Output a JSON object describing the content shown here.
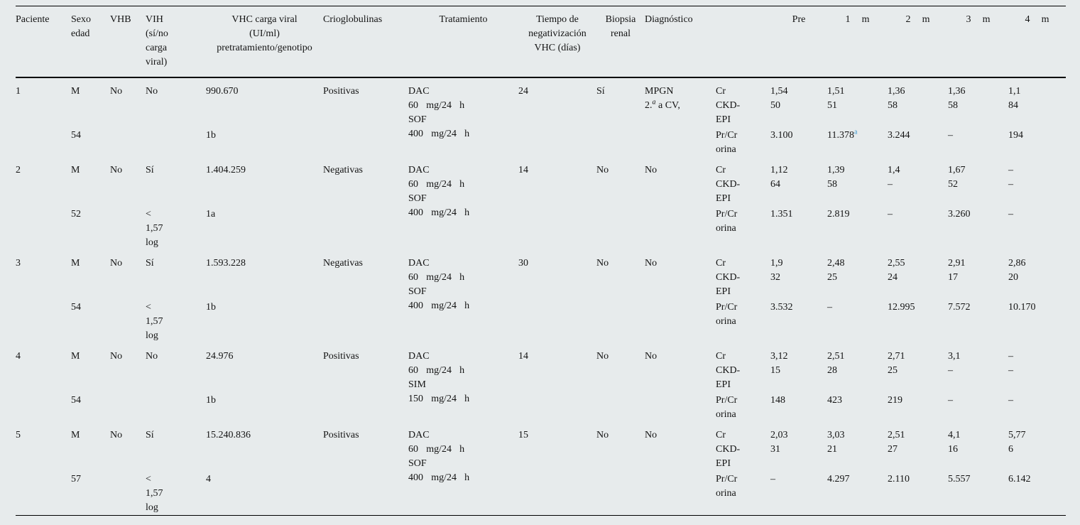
{
  "page": {
    "background_color": "#e7ebec",
    "text_color": "#131313",
    "footnote_link_color": "#3d9ad0"
  },
  "header": {
    "columns": [
      {
        "key": "paciente",
        "lines": [
          "Paciente"
        ],
        "align": "left"
      },
      {
        "key": "sexo",
        "lines": [
          "Sexo",
          "edad"
        ],
        "align": "left"
      },
      {
        "key": "vhb",
        "lines": [
          "VHB"
        ],
        "align": "left"
      },
      {
        "key": "vih",
        "lines": [
          "VIH",
          "(sí/no",
          "carga",
          "viral)"
        ],
        "align": "left"
      },
      {
        "key": "vhc",
        "lines": [
          "VHC carga viral",
          "(UI/ml)",
          "pretratamiento/genotipo"
        ],
        "align": "center"
      },
      {
        "key": "crioglobulinas",
        "lines": [
          "Crioglobulinas"
        ],
        "align": "left"
      },
      {
        "key": "tratamiento",
        "lines": [
          "Tratamiento"
        ],
        "align": "center"
      },
      {
        "key": "tiempo",
        "lines": [
          "Tiempo de",
          "negativización",
          "VHC (días)"
        ],
        "align": "center"
      },
      {
        "key": "biopsia",
        "lines": [
          "Biopsia",
          "renal"
        ],
        "align": "center"
      },
      {
        "key": "diagnostico",
        "lines": [
          "Diagnóstico"
        ],
        "align": "left"
      },
      {
        "key": "param",
        "lines": [],
        "align": "left"
      },
      {
        "key": "pre",
        "lines": [
          "Pre"
        ],
        "align": "center",
        "month": false
      },
      {
        "key": "m1",
        "lines": [
          "1 m"
        ],
        "align": "center",
        "month": true
      },
      {
        "key": "m2",
        "lines": [
          "2 m"
        ],
        "align": "center",
        "month": true
      },
      {
        "key": "m3",
        "lines": [
          "3 m"
        ],
        "align": "center",
        "month": true
      },
      {
        "key": "m4",
        "lines": [
          "4 m"
        ],
        "align": "center",
        "month": true
      }
    ]
  },
  "param_labels": {
    "cr": "Cr",
    "ckd": [
      "CKD-",
      "EPI"
    ],
    "prcr": [
      "Pr/Cr",
      "orina"
    ]
  },
  "patients": [
    {
      "id": "1",
      "sexo": "M",
      "edad": "54",
      "vhb": "No",
      "vih": "No",
      "vih_extra": [],
      "vhc_carga": "990.670",
      "genotipo": "1b",
      "crioglobulinas": "Positivas",
      "tratamiento": [
        "DAC",
        "60 mg/24 h",
        "SOF",
        "400 mg/24 h"
      ],
      "tiempo": "24",
      "biopsia": "Sí",
      "diagnostico": {
        "line1": "MPGN",
        "line2": {
          "pre": "2.",
          "sup": "a",
          "post": " a CV,"
        }
      },
      "cr": [
        "1,54",
        "1,51",
        "1,36",
        "1,36",
        "1,1"
      ],
      "ckd": [
        "50",
        "51",
        "58",
        "58",
        "84"
      ],
      "prcr": [
        "3.100",
        {
          "v": "11.378",
          "sup": "a"
        },
        "3.244",
        "–",
        "194"
      ]
    },
    {
      "id": "2",
      "sexo": "M",
      "edad": "52",
      "vhb": "No",
      "vih": "Sí",
      "vih_extra": [
        "<",
        "1,57",
        "log"
      ],
      "vhc_carga": "1.404.259",
      "genotipo": "1a",
      "crioglobulinas": "Negativas",
      "tratamiento": [
        "DAC",
        "60 mg/24 h",
        "SOF",
        "400 mg/24 h"
      ],
      "tiempo": "14",
      "biopsia": "No",
      "diagnostico": {
        "line1": "No"
      },
      "cr": [
        "1,12",
        "1,39",
        "1,4",
        "1,67",
        "–"
      ],
      "ckd": [
        "64",
        "58",
        "–",
        "52",
        "–"
      ],
      "prcr": [
        "1.351",
        "2.819",
        "–",
        "3.260",
        "–"
      ]
    },
    {
      "id": "3",
      "sexo": "M",
      "edad": "54",
      "vhb": "No",
      "vih": "Sí",
      "vih_extra": [
        "<",
        "1,57",
        "log"
      ],
      "vhc_carga": "1.593.228",
      "genotipo": "1b",
      "crioglobulinas": "Negativas",
      "tratamiento": [
        "DAC",
        "60 mg/24 h",
        "SOF",
        "400 mg/24 h"
      ],
      "tiempo": "30",
      "biopsia": "No",
      "diagnostico": {
        "line1": "No"
      },
      "cr": [
        "1,9",
        "2,48",
        "2,55",
        "2,91",
        "2,86"
      ],
      "ckd": [
        "32",
        "25",
        "24",
        "17",
        "20"
      ],
      "prcr": [
        "3.532",
        "–",
        "12.995",
        "7.572",
        "10.170"
      ]
    },
    {
      "id": "4",
      "sexo": "M",
      "edad": "54",
      "vhb": "No",
      "vih": "No",
      "vih_extra": [],
      "vhc_carga": "24.976",
      "genotipo": "1b",
      "crioglobulinas": "Positivas",
      "tratamiento": [
        "DAC",
        "60 mg/24 h",
        "SIM",
        "150 mg/24 h"
      ],
      "tiempo": "14",
      "biopsia": "No",
      "diagnostico": {
        "line1": "No"
      },
      "cr": [
        "3,12",
        "2,51",
        "2,71",
        "3,1",
        "–"
      ],
      "ckd": [
        "15",
        "28",
        "25",
        "–",
        "–"
      ],
      "prcr": [
        "148",
        "423",
        "219",
        "–",
        "–"
      ]
    },
    {
      "id": "5",
      "sexo": "M",
      "edad": "57",
      "vhb": "No",
      "vih": "Sí",
      "vih_extra": [
        "<",
        "1,57",
        "log"
      ],
      "vhc_carga": "15.240.836",
      "genotipo": "4",
      "crioglobulinas": "Positivas",
      "tratamiento": [
        "DAC",
        "60 mg/24 h",
        "SOF",
        "400 mg/24 h"
      ],
      "tiempo": "15",
      "biopsia": "No",
      "diagnostico": {
        "line1": "No"
      },
      "cr": [
        "2,03",
        "3,03",
        "2,51",
        "4,1",
        "5,77"
      ],
      "ckd": [
        "31",
        "21",
        "27",
        "16",
        "6"
      ],
      "prcr": [
        "–",
        "4.297",
        "2.110",
        "5.557",
        "6.142"
      ]
    }
  ]
}
